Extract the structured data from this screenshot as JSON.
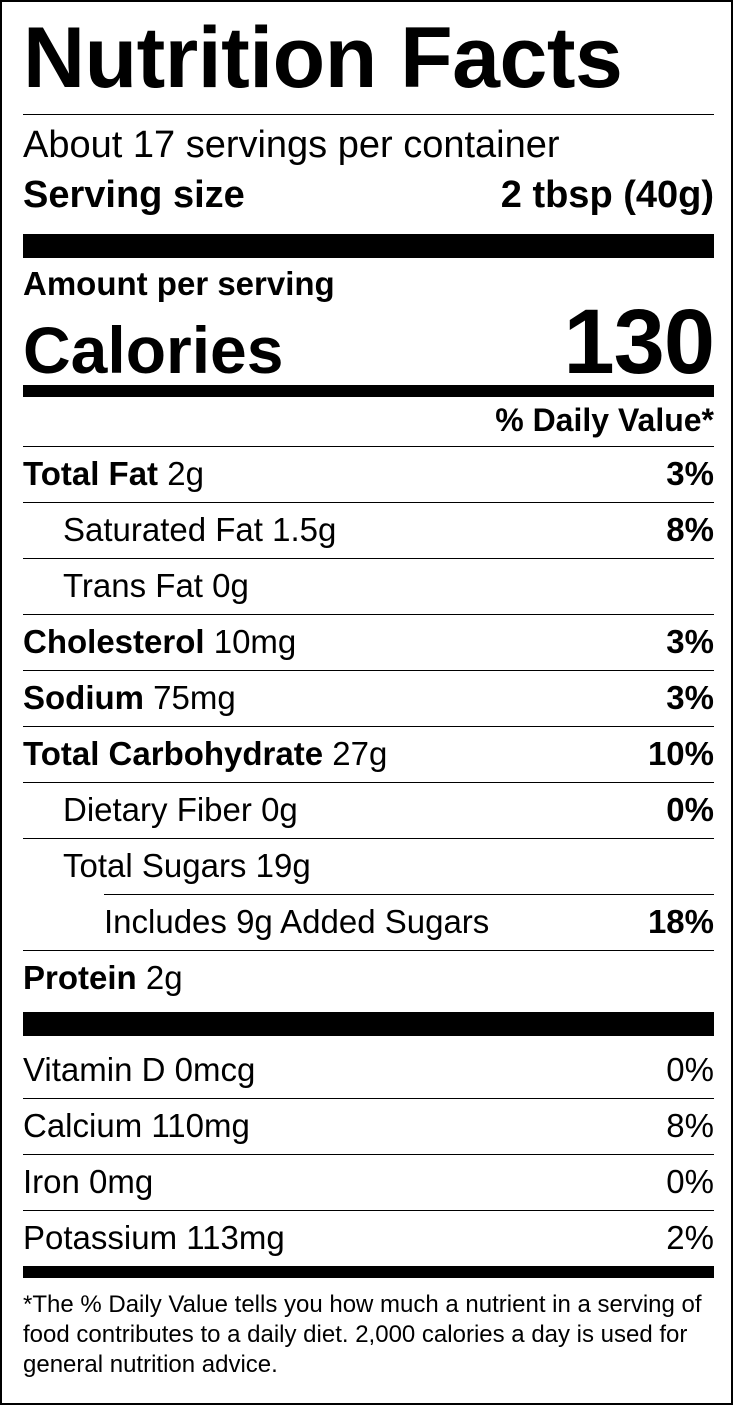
{
  "title": "Nutrition Facts",
  "servings_per_container": "About 17 servings per container",
  "serving_size": {
    "label": "Serving size",
    "value": "2 tbsp (40g)"
  },
  "amount_per_serving": "Amount per serving",
  "calories": {
    "label": "Calories",
    "value": "130"
  },
  "daily_value_header": "% Daily Value*",
  "nutrients": [
    {
      "name": "Total Fat",
      "amount": "2g",
      "dv": "3%"
    },
    {
      "name": "Saturated Fat",
      "amount": "1.5g",
      "dv": "8%"
    },
    {
      "name": "Trans Fat",
      "amount": "0g",
      "dv": ""
    },
    {
      "name": "Cholesterol",
      "amount": "10mg",
      "dv": "3%"
    },
    {
      "name": "Sodium",
      "amount": "75mg",
      "dv": "3%"
    },
    {
      "name": "Total Carbohydrate",
      "amount": "27g",
      "dv": "10%"
    },
    {
      "name": "Dietary Fiber",
      "amount": "0g",
      "dv": "0%"
    },
    {
      "name": "Total Sugars",
      "amount": "19g",
      "dv": ""
    },
    {
      "name": "Includes 9g Added Sugars",
      "amount": "",
      "dv": "18%"
    },
    {
      "name": "Protein",
      "amount": "2g",
      "dv": ""
    }
  ],
  "vitamins": [
    {
      "text": "Vitamin D 0mcg",
      "dv": "0%"
    },
    {
      "text": "Calcium 110mg",
      "dv": "8%"
    },
    {
      "text": "Iron 0mg",
      "dv": "0%"
    },
    {
      "text": "Potassium 113mg",
      "dv": "2%"
    }
  ],
  "footnote": "*The % Daily Value tells you how much a nutrient in a serving of food contributes to a daily diet. 2,000 calories a day is used for general nutrition advice."
}
